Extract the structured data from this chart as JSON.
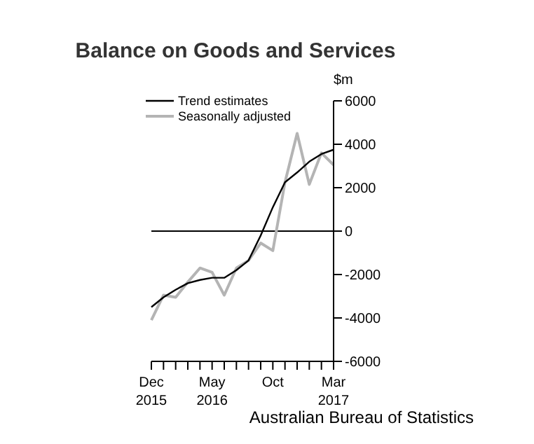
{
  "chart_data": {
    "type": "line",
    "title": "Balance on Goods and Services",
    "ylabel": "$m",
    "categories": [
      "Dec 2015",
      null,
      null,
      null,
      null,
      "May 2016",
      null,
      null,
      null,
      null,
      "Oct",
      null,
      null,
      null,
      null,
      "Mar 2017"
    ],
    "series": [
      {
        "name": "Trend estimates",
        "color": "#000000",
        "values": [
          -3500,
          -3050,
          -2700,
          -2400,
          -2250,
          -2150,
          -2150,
          -1800,
          -1350,
          -200,
          1100,
          2250,
          2700,
          3200,
          3550,
          3750
        ]
      },
      {
        "name": "Seasonally adjusted",
        "color": "#b4b4b4",
        "values": [
          -4100,
          -2950,
          -3050,
          -2350,
          -1700,
          -1900,
          -2950,
          -1700,
          -1350,
          -550,
          -900,
          2250,
          4500,
          2150,
          3600,
          3050
        ]
      }
    ],
    "ylim": [
      -6000,
      6000
    ],
    "yticks": [
      -6000,
      -4000,
      -2000,
      0,
      2000,
      4000,
      6000
    ],
    "ref_lines": [
      {
        "axis": "y",
        "value": 0,
        "color": "#000000"
      }
    ],
    "grid": false,
    "legend": "top left",
    "marker": "none",
    "line_style": "solid",
    "annotations": [
      "Australian Bureau of Statistics"
    ]
  }
}
